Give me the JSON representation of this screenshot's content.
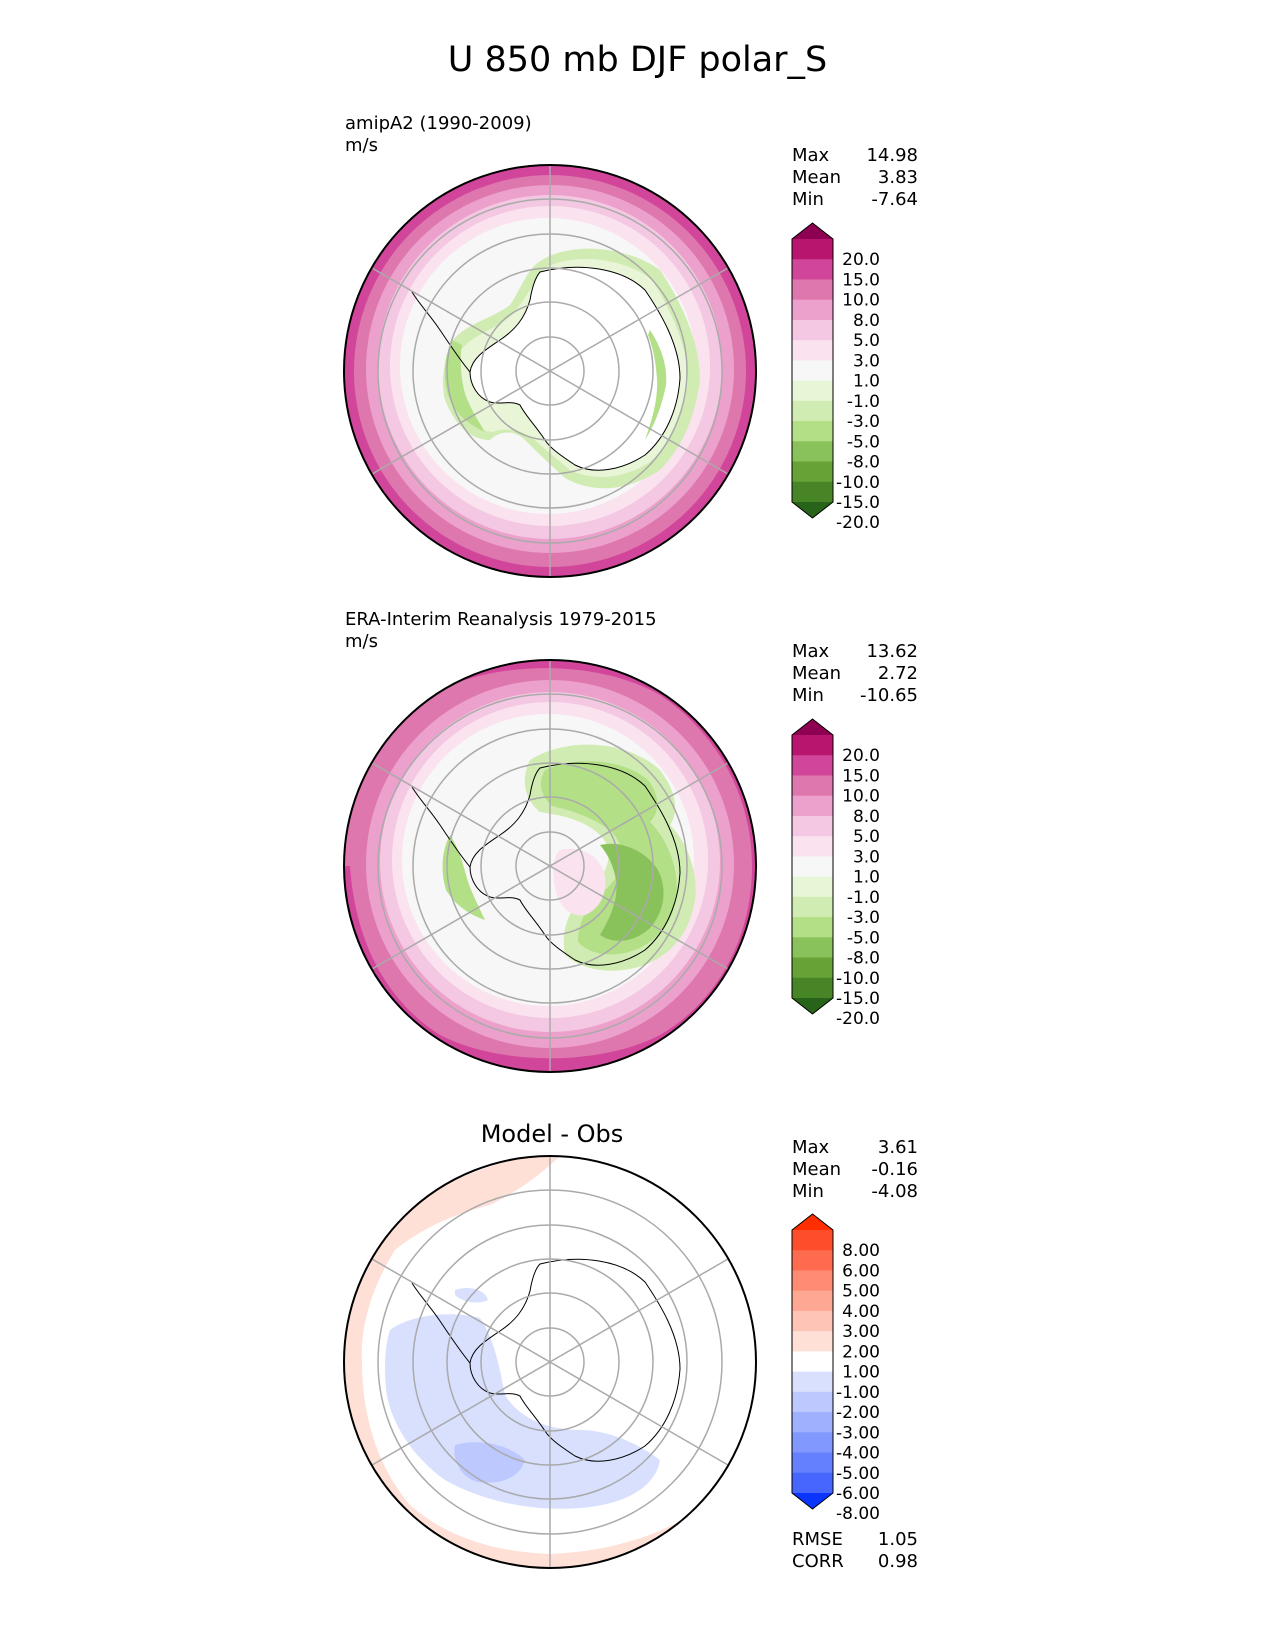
{
  "title": "U 850 mb DJF polar_S",
  "panels": [
    {
      "id": "model",
      "title_lines": [
        "amipA2 (1990-2009)",
        "m/s"
      ],
      "stats": [
        {
          "label": "Max",
          "value": "14.98"
        },
        {
          "label": "Mean",
          "value": "3.83"
        },
        {
          "label": "Min",
          "value": "-7.64"
        }
      ],
      "colorbar": {
        "labels": [
          "20.0",
          "15.0",
          "10.0",
          "8.0",
          "5.0",
          "3.0",
          "1.0",
          "-1.0",
          "-3.0",
          "-5.0",
          "-8.0",
          "-10.0",
          "-15.0",
          "-20.0"
        ],
        "colors": [
          "#8e0152",
          "#b8156f",
          "#d1469a",
          "#de77ae",
          "#eba1cb",
          "#f4c8e2",
          "#fae3ef",
          "#f7f7f7",
          "#e8f5d6",
          "#d1ecb2",
          "#b3df87",
          "#89c25a",
          "#66a235",
          "#488527",
          "#276419"
        ]
      }
    },
    {
      "id": "obs",
      "title_lines": [
        "ERA-Interim Reanalysis 1979-2015",
        "m/s"
      ],
      "stats": [
        {
          "label": "Max",
          "value": "13.62"
        },
        {
          "label": "Mean",
          "value": "2.72"
        },
        {
          "label": "Min",
          "value": "-10.65"
        }
      ],
      "colorbar": {
        "labels": [
          "20.0",
          "15.0",
          "10.0",
          "8.0",
          "5.0",
          "3.0",
          "1.0",
          "-1.0",
          "-3.0",
          "-5.0",
          "-8.0",
          "-10.0",
          "-15.0",
          "-20.0"
        ],
        "colors": [
          "#8e0152",
          "#b8156f",
          "#d1469a",
          "#de77ae",
          "#eba1cb",
          "#f4c8e2",
          "#fae3ef",
          "#f7f7f7",
          "#e8f5d6",
          "#d1ecb2",
          "#b3df87",
          "#89c25a",
          "#66a235",
          "#488527",
          "#276419"
        ]
      }
    },
    {
      "id": "diff",
      "center_title": "Model - Obs",
      "stats": [
        {
          "label": "Max",
          "value": "3.61"
        },
        {
          "label": "Mean",
          "value": "-0.16"
        },
        {
          "label": "Min",
          "value": "-4.08"
        }
      ],
      "footer_stats": [
        {
          "label": "RMSE",
          "value": "1.05"
        },
        {
          "label": "CORR",
          "value": "0.98"
        }
      ],
      "colorbar": {
        "labels": [
          "8.00",
          "6.00",
          "5.00",
          "4.00",
          "3.00",
          "2.00",
          "1.00",
          "-1.00",
          "-2.00",
          "-3.00",
          "-4.00",
          "-5.00",
          "-6.00",
          "-8.00"
        ],
        "colors": [
          "#fe2e00",
          "#fe4d2b",
          "#fe6b4e",
          "#fe8b72",
          "#fea894",
          "#fec4b5",
          "#fee0d7",
          "#ffffff",
          "#d8e0fe",
          "#bcc8fe",
          "#9fb0fe",
          "#8198fe",
          "#6480fe",
          "#4666fe",
          "#0a35fe"
        ]
      }
    }
  ]
}
